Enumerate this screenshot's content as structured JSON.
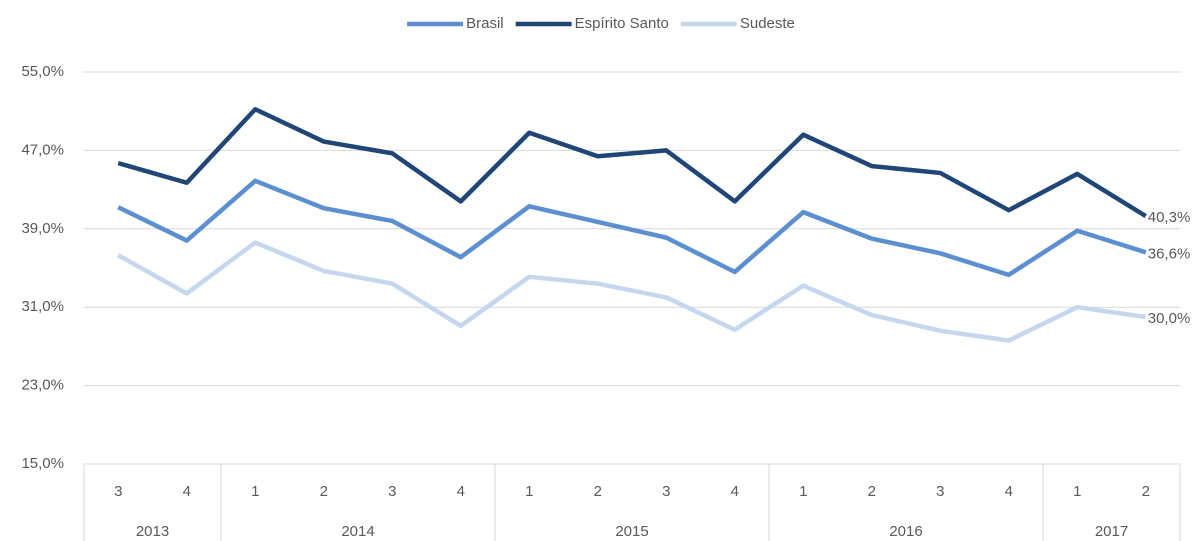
{
  "chart_data": {
    "type": "line",
    "categories": [
      "3",
      "4",
      "1",
      "2",
      "3",
      "4",
      "1",
      "2",
      "3",
      "4",
      "1",
      "2",
      "3",
      "4",
      "1",
      "2"
    ],
    "groups": [
      "2013",
      null,
      "2014",
      null,
      null,
      null,
      "2015",
      null,
      null,
      null,
      "2016",
      null,
      null,
      null,
      "2017",
      null
    ],
    "series": [
      {
        "name": "Brasil",
        "color": "#5b8fd0",
        "values": [
          41.2,
          37.8,
          43.9,
          41.1,
          39.8,
          36.1,
          41.3,
          39.7,
          38.1,
          34.6,
          40.7,
          38.0,
          36.5,
          34.3,
          38.8,
          36.6
        ],
        "value_labels": [
          null,
          null,
          null,
          null,
          null,
          null,
          null,
          null,
          null,
          null,
          null,
          null,
          null,
          null,
          null,
          "36,6%"
        ]
      },
      {
        "name": "Espírito Santo",
        "color": "#1f4677",
        "values": [
          45.7,
          43.7,
          51.2,
          47.9,
          46.7,
          41.8,
          48.8,
          46.4,
          47.0,
          41.8,
          48.6,
          45.4,
          44.7,
          40.9,
          44.6,
          40.3
        ],
        "value_labels": [
          null,
          null,
          null,
          null,
          null,
          null,
          null,
          null,
          null,
          null,
          null,
          null,
          null,
          null,
          null,
          "40,3%"
        ]
      },
      {
        "name": "Sudeste",
        "color": "#c5d7ee",
        "values": [
          36.3,
          32.4,
          37.6,
          34.7,
          33.4,
          29.1,
          34.1,
          33.4,
          32.0,
          28.7,
          33.2,
          30.2,
          28.6,
          27.6,
          31.0,
          30.0
        ],
        "value_labels": [
          null,
          null,
          null,
          null,
          null,
          null,
          null,
          null,
          null,
          null,
          null,
          null,
          null,
          null,
          null,
          "30,0%"
        ]
      }
    ],
    "ylim": [
      15,
      55
    ],
    "yticks": [
      {
        "value": 15,
        "label": "15,0%"
      },
      {
        "value": 23,
        "label": "23,0%"
      },
      {
        "value": 31,
        "label": "31,0%"
      },
      {
        "value": 39,
        "label": "39,0%"
      },
      {
        "value": 47,
        "label": "47,0%"
      },
      {
        "value": 55,
        "label": "55,0%"
      }
    ],
    "grid": true,
    "legend": "top"
  }
}
